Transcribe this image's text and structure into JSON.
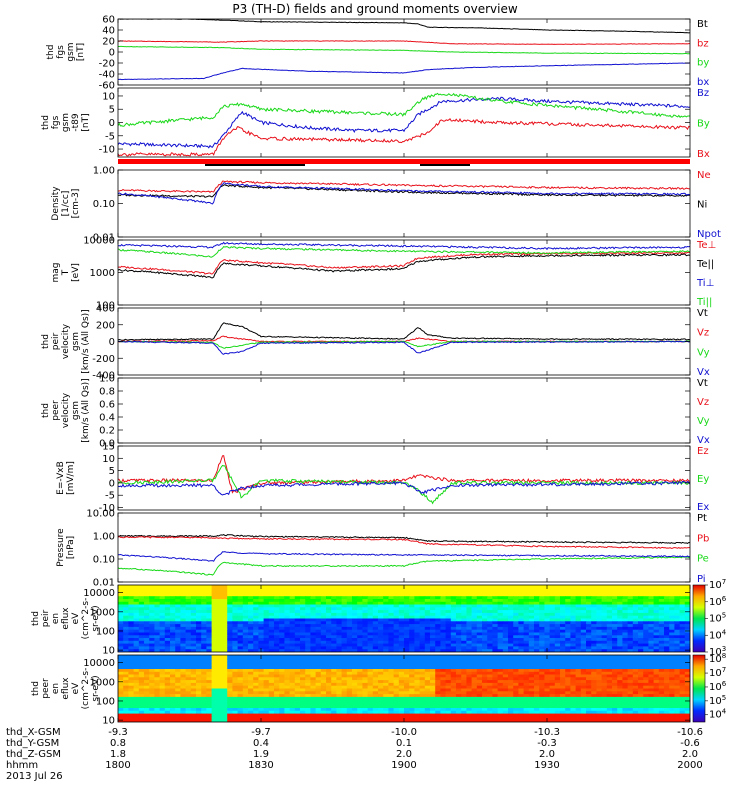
{
  "title": "P3 (TH-D) fields and ground moments overview",
  "colors": {
    "black": "#000000",
    "red": "#e8101a",
    "green": "#18d818",
    "blue": "#1010d0",
    "bar_red": "#ff0000"
  },
  "chart_data": [
    {
      "type": "line",
      "panel": "fgs_gsm",
      "ylabel": [
        "thd",
        "fgs",
        "gsm",
        "[nT]"
      ],
      "yticks": [
        "60",
        "40",
        "20",
        "0",
        "-20",
        "-40",
        "-60"
      ],
      "ylim": [
        -60,
        60
      ],
      "series": [
        {
          "name": "Bt",
          "color": "black",
          "x": [
            1800,
            1810,
            1815,
            1822,
            1830,
            1845,
            1900,
            1903,
            1905,
            1915,
            1930,
            1945,
            2000
          ],
          "values": [
            60,
            60,
            60,
            58,
            55,
            54,
            53,
            51,
            45,
            44,
            40,
            38,
            35
          ]
        },
        {
          "name": "bz",
          "color": "red",
          "x": [
            1800,
            1822,
            1830,
            1900,
            1910,
            1930,
            2000
          ],
          "values": [
            20,
            18,
            20,
            20,
            15,
            14,
            15
          ]
        },
        {
          "name": "by",
          "color": "green",
          "x": [
            1800,
            1822,
            1830,
            1900,
            1910,
            1930,
            2000
          ],
          "values": [
            10,
            8,
            5,
            3,
            0,
            -2,
            -3
          ]
        },
        {
          "name": "bx",
          "color": "blue",
          "x": [
            1800,
            1818,
            1822,
            1826,
            1840,
            1900,
            1905,
            1915,
            1930,
            2000
          ],
          "values": [
            -50,
            -48,
            -38,
            -30,
            -35,
            -38,
            -32,
            -28,
            -25,
            -20
          ]
        }
      ]
    },
    {
      "type": "line",
      "panel": "fgs_gsm_minus_t89",
      "ylabel": [
        "thd",
        "fgs",
        "gsm",
        "-t89",
        "[nT]"
      ],
      "yticks": [
        "10",
        "5",
        "0",
        "-5",
        "-10"
      ],
      "ylim": [
        -13,
        13
      ],
      "series": [
        {
          "name": "Bz",
          "color": "blue",
          "x": [
            1800,
            1820,
            1822,
            1826,
            1830,
            1840,
            1850,
            1900,
            1903,
            1908,
            1920,
            1930,
            1945,
            2000
          ],
          "values": [
            -8,
            -9,
            -5,
            4,
            0,
            -2,
            -3,
            -3,
            3,
            8,
            9,
            8,
            7,
            6
          ]
        },
        {
          "name": "By",
          "color": "green",
          "x": [
            1800,
            1820,
            1822,
            1826,
            1830,
            1845,
            1900,
            1904,
            1908,
            1920,
            1940,
            2000
          ],
          "values": [
            -1,
            2,
            6,
            7,
            5,
            4,
            3,
            9,
            11,
            8,
            5,
            2
          ]
        },
        {
          "name": "Bx",
          "color": "red",
          "x": [
            1800,
            1820,
            1822,
            1825,
            1830,
            1900,
            1905,
            1908,
            1920,
            1940,
            2000
          ],
          "values": [
            -12,
            -12,
            -6,
            -2,
            -6,
            -7,
            -4,
            1,
            0,
            -1,
            -2
          ]
        }
      ]
    },
    {
      "type": "line",
      "panel": "density",
      "ylabel": [
        "Density",
        "[1/cc]",
        "[cm-3]"
      ],
      "yticks": [
        "1.00",
        "0.10",
        "0.01"
      ],
      "ylim": [
        0.01,
        1.0
      ],
      "yscale": "log",
      "series": [
        {
          "name": "Ne",
          "color": "red",
          "x": [
            1800,
            1820,
            1822,
            1830,
            1900,
            1930,
            2000
          ],
          "values": [
            0.25,
            0.22,
            0.45,
            0.42,
            0.35,
            0.3,
            0.28
          ]
        },
        {
          "name": "Ni",
          "color": "black",
          "x": [
            1800,
            1820,
            1822,
            1830,
            1900,
            1930,
            2000
          ],
          "values": [
            0.18,
            0.16,
            0.35,
            0.3,
            0.22,
            0.18,
            0.17
          ]
        },
        {
          "name": "Npot",
          "color": "blue",
          "x": [
            1800,
            1820,
            1822,
            1830,
            1900,
            1930,
            2000
          ],
          "values": [
            0.2,
            0.1,
            0.4,
            0.32,
            0.24,
            0.2,
            0.19
          ]
        }
      ]
    },
    {
      "type": "line",
      "panel": "temperature",
      "ylabel": [
        "mag",
        "T",
        "[eV]"
      ],
      "yticks": [
        "10000",
        "1000",
        "100"
      ],
      "ylim": [
        100,
        10000
      ],
      "yscale": "log",
      "series": [
        {
          "name": "Te⊥",
          "color": "red",
          "x": [
            1800,
            1820,
            1822,
            1830,
            1845,
            1900,
            1903,
            1915,
            1930,
            2000
          ],
          "values": [
            1500,
            900,
            2400,
            2000,
            1400,
            1600,
            2800,
            3600,
            3800,
            4000
          ]
        },
        {
          "name": "Te||",
          "color": "black",
          "x": [
            1800,
            1820,
            1822,
            1830,
            1845,
            1900,
            1903,
            1915,
            1930,
            2000
          ],
          "values": [
            1200,
            700,
            1900,
            1600,
            1100,
            1300,
            2200,
            3000,
            3300,
            3500
          ]
        },
        {
          "name": "Ti⊥",
          "color": "blue",
          "x": [
            1800,
            1820,
            1822,
            1830,
            1900,
            1930,
            2000
          ],
          "values": [
            7000,
            6000,
            8000,
            7500,
            6500,
            5500,
            6000
          ]
        },
        {
          "name": "Ti||",
          "color": "green",
          "x": [
            1800,
            1820,
            1822,
            1830,
            1900,
            1930,
            2000
          ],
          "values": [
            5000,
            3000,
            6000,
            5500,
            4500,
            4000,
            4500
          ]
        }
      ]
    },
    {
      "type": "line",
      "panel": "peir_velocity",
      "ylabel": [
        "thd",
        "peir",
        "velocity",
        "gsm",
        "[km/s (All Qs)]"
      ],
      "yticks": [
        "400",
        "200",
        "0",
        "-200",
        "-400"
      ],
      "ylim": [
        -400,
        400
      ],
      "series": [
        {
          "name": "Vt",
          "color": "black",
          "x": [
            1800,
            1820,
            1822,
            1826,
            1830,
            1850,
            1900,
            1903,
            1905,
            1910,
            1930,
            2000
          ],
          "values": [
            20,
            30,
            220,
            180,
            60,
            40,
            30,
            170,
            80,
            40,
            30,
            25
          ]
        },
        {
          "name": "Vz",
          "color": "red",
          "x": [
            1800,
            1820,
            1822,
            1830,
            1900,
            1903,
            1910,
            2000
          ],
          "values": [
            0,
            10,
            60,
            0,
            0,
            40,
            0,
            0
          ]
        },
        {
          "name": "Vy",
          "color": "green",
          "x": [
            1800,
            1820,
            1822,
            1830,
            1900,
            1903,
            1910,
            2000
          ],
          "values": [
            0,
            -10,
            -80,
            -10,
            0,
            -60,
            0,
            0
          ]
        },
        {
          "name": "Vx",
          "color": "blue",
          "x": [
            1800,
            1820,
            1822,
            1826,
            1830,
            1900,
            1903,
            1910,
            2000
          ],
          "values": [
            0,
            -20,
            -150,
            -120,
            -20,
            -10,
            -140,
            -10,
            0
          ]
        }
      ]
    },
    {
      "type": "line",
      "panel": "peer_velocity",
      "ylabel": [
        "thd",
        "peer",
        "velocity",
        "gsm",
        "[km/s (All Qs)]"
      ],
      "yticks": [
        "1.0",
        "0.8",
        "0.6",
        "0.4",
        "0.2",
        "0.0"
      ],
      "ylim": [
        0,
        1
      ],
      "series": [
        {
          "name": "Vt",
          "color": "black",
          "x": [],
          "values": []
        },
        {
          "name": "Vz",
          "color": "red",
          "x": [],
          "values": []
        },
        {
          "name": "Vy",
          "color": "green",
          "x": [],
          "values": []
        },
        {
          "name": "Vx",
          "color": "blue",
          "x": [],
          "values": []
        }
      ]
    },
    {
      "type": "line",
      "panel": "efield",
      "ylabel": [
        "E=-VxB",
        "[mV/m]"
      ],
      "yticks": [
        "15",
        "10",
        "5",
        "0",
        "-5",
        "-10"
      ],
      "ylim": [
        -11,
        15
      ],
      "series": [
        {
          "name": "Ez",
          "color": "red",
          "x": [
            1800,
            1820,
            1822,
            1824,
            1830,
            1900,
            1903,
            1910,
            2000
          ],
          "values": [
            1,
            1,
            12,
            -4,
            0,
            1,
            3,
            1,
            1
          ]
        },
        {
          "name": "Ey",
          "color": "green",
          "x": [
            1800,
            1820,
            1822,
            1826,
            1830,
            1900,
            1903,
            1906,
            1910,
            2000
          ],
          "values": [
            0,
            1,
            8,
            -6,
            1,
            0,
            -3,
            -8,
            0,
            0
          ]
        },
        {
          "name": "Ex",
          "color": "blue",
          "x": [
            1800,
            1820,
            1822,
            1826,
            1830,
            1900,
            1904,
            1910,
            2000
          ],
          "values": [
            -1,
            -1,
            -5,
            -2,
            -1,
            0,
            -4,
            -1,
            0
          ]
        }
      ]
    },
    {
      "type": "line",
      "panel": "pressure",
      "ylabel": [
        "Pressure",
        "[nPa]"
      ],
      "yticks": [
        "10.00",
        "1.00",
        "0.10",
        "0.01"
      ],
      "ylim": [
        0.01,
        10
      ],
      "yscale": "log",
      "series": [
        {
          "name": "Pt",
          "color": "black",
          "x": [
            1800,
            1820,
            1822,
            1830,
            1900,
            1905,
            1930,
            2000
          ],
          "values": [
            1.0,
            1.0,
            1.1,
            0.95,
            0.85,
            0.6,
            0.55,
            0.5
          ]
        },
        {
          "name": "Pb",
          "color": "red",
          "x": [
            1800,
            1820,
            1822,
            1830,
            1900,
            1905,
            1930,
            2000
          ],
          "values": [
            0.9,
            0.85,
            0.8,
            0.75,
            0.7,
            0.45,
            0.35,
            0.3
          ]
        },
        {
          "name": "Pe",
          "color": "green",
          "x": [
            1800,
            1820,
            1822,
            1830,
            1900,
            1905,
            1930,
            2000
          ],
          "values": [
            0.04,
            0.02,
            0.07,
            0.05,
            0.05,
            0.08,
            0.1,
            0.12
          ]
        },
        {
          "name": "Pi",
          "color": "blue",
          "x": [
            1800,
            1820,
            1822,
            1830,
            1900,
            1905,
            1930,
            2000
          ],
          "values": [
            0.15,
            0.08,
            0.2,
            0.17,
            0.15,
            0.15,
            0.14,
            0.13
          ]
        }
      ]
    },
    {
      "type": "heatmap",
      "panel": "peir_spectrogram",
      "ylabel": [
        "thd",
        "peir",
        "en",
        "eflux",
        "eV",
        "(cm^2-s-",
        "sr-eV)"
      ],
      "yticks": [
        "10000",
        "1000",
        "100",
        "10"
      ],
      "ylim": [
        8,
        25000
      ],
      "yscale": "log",
      "colorbar_ticks": [
        "10^7",
        "10^6",
        "10^5",
        "10^4",
        "10^3"
      ],
      "colorbar_range": [
        1000,
        10000000
      ]
    },
    {
      "type": "heatmap",
      "panel": "peer_spectrogram",
      "ylabel": [
        "thd",
        "peer",
        "en",
        "eflux",
        "eV",
        "(cm^2-s-",
        "sr-eV)"
      ],
      "yticks": [
        "10000",
        "1000",
        "100",
        "10"
      ],
      "ylim": [
        8,
        25000
      ],
      "yscale": "log",
      "colorbar_ticks": [
        "10^8",
        "10^7",
        "10^6",
        "10^5",
        "10^4"
      ],
      "colorbar_range": [
        3000,
        200000000
      ]
    }
  ],
  "xaxis": {
    "range": [
      1800,
      2000
    ],
    "ticks": [
      1800,
      1830,
      1900,
      1930,
      2000
    ],
    "rows": [
      {
        "label": "thd_X-GSM",
        "values": [
          "-9.3",
          "-9.7",
          "-10.0",
          "-10.3",
          "-10.6"
        ]
      },
      {
        "label": "thd_Y-GSM",
        "values": [
          "0.8",
          "0.4",
          "0.1",
          "-0.3",
          "-0.6"
        ]
      },
      {
        "label": "thd_Z-GSM",
        "values": [
          "1.8",
          "1.9",
          "2.0",
          "2.0",
          "2.0"
        ]
      },
      {
        "label": "hhmm",
        "values": [
          "1800",
          "1830",
          "1900",
          "1930",
          "2000"
        ]
      }
    ],
    "date": "2013 Jul 26"
  }
}
